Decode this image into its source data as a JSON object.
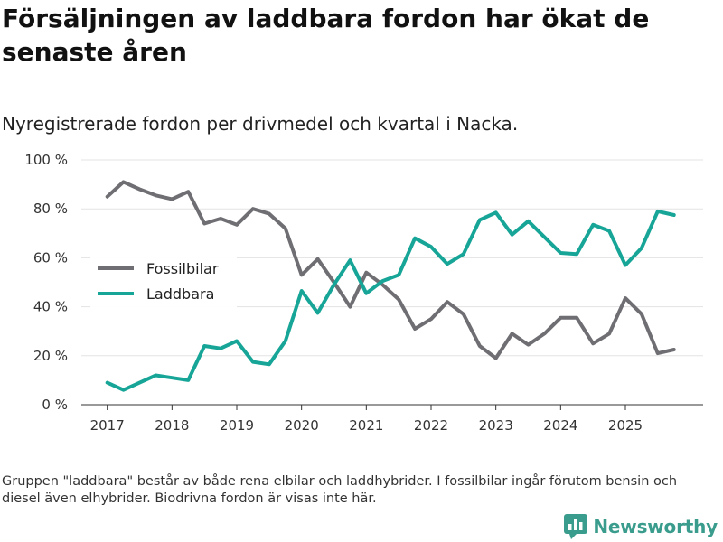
{
  "title": "Försäljningen av laddbara fordon har ökat de senaste åren",
  "subtitle": "Nyregistrerade fordon per drivmedel och kvartal i Nacka.",
  "footnote": "Gruppen \"laddbara\" består av både rena elbilar och laddhybrider. I fossilbilar ingår förutom bensin och diesel även elhybrider. Biodrivna fordon är visas inte här.",
  "brand": {
    "name": "Newsworthy",
    "color": "#3a9c8c"
  },
  "chart_data": {
    "type": "line",
    "title": "Försäljningen av laddbara fordon har ökat de senaste åren",
    "subtitle": "Nyregistrerade fordon per drivmedel och kvartal i Nacka.",
    "xlabel": "",
    "ylabel": "",
    "ylim": [
      0,
      100
    ],
    "yticks": [
      0,
      20,
      40,
      60,
      80,
      100
    ],
    "ytick_labels": [
      "0 %",
      "20 %",
      "40 %",
      "60 %",
      "80 %",
      "100 %"
    ],
    "xlim": [
      2016.6,
      2026.2
    ],
    "xticks": [
      2017,
      2018,
      2019,
      2020,
      2021,
      2022,
      2023,
      2024,
      2025
    ],
    "xtick_labels": [
      "2017",
      "2018",
      "2019",
      "2020",
      "2021",
      "2022",
      "2023",
      "2024",
      "2025"
    ],
    "grid": true,
    "legend_position": "middle-left",
    "x": [
      2017.0,
      2017.25,
      2017.5,
      2017.75,
      2018.0,
      2018.25,
      2018.5,
      2018.75,
      2019.0,
      2019.25,
      2019.5,
      2019.75,
      2020.0,
      2020.25,
      2020.5,
      2020.75,
      2021.0,
      2021.25,
      2021.5,
      2021.75,
      2022.0,
      2022.25,
      2022.5,
      2022.75,
      2023.0,
      2023.25,
      2023.5,
      2023.75,
      2024.0,
      2024.25,
      2024.5,
      2024.75,
      2025.0,
      2025.25,
      2025.5,
      2025.75
    ],
    "series": [
      {
        "name": "Fossilbilar",
        "color": "#6e6e73",
        "values": [
          85,
          91,
          88,
          85.5,
          84,
          87,
          74,
          76,
          73.5,
          80,
          78,
          72,
          53,
          59.5,
          50,
          40,
          54,
          49,
          43,
          31,
          35,
          42,
          37,
          24,
          19,
          29,
          24.5,
          29,
          35.5,
          35.5,
          25,
          29,
          43.5,
          37,
          21,
          22.5
        ]
      },
      {
        "name": "Laddbara",
        "color": "#17a598",
        "values": [
          9,
          6,
          9,
          12,
          11,
          10,
          24,
          23,
          26,
          17.5,
          16.5,
          26,
          46.5,
          37.5,
          49,
          59,
          45.5,
          50.5,
          53,
          68,
          64.5,
          57.5,
          61.5,
          75.5,
          78.5,
          69.5,
          75,
          68.5,
          62,
          61.5,
          73.5,
          71,
          57,
          64,
          79,
          77.5
        ]
      }
    ]
  }
}
